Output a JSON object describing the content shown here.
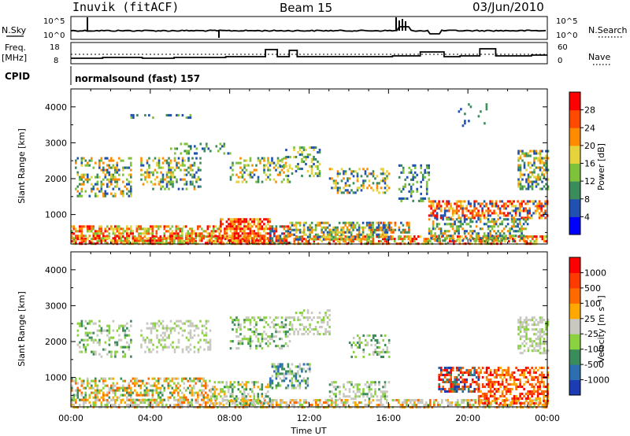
{
  "header": {
    "station": "Inuvik (fitACF)",
    "beam": "Beam 15",
    "date": "03/Jun/2010"
  },
  "noise_panel": {
    "left_label": "N.Sky",
    "right_label": "N.Search",
    "left_ticks": [
      "10^5",
      "10^0"
    ],
    "right_ticks": [
      "10^5",
      "10^0"
    ]
  },
  "freq_panel": {
    "left_label": "Freq.",
    "left_unit": "[MHz]",
    "right_label": "Nave",
    "left_ticks": [
      "18",
      "8"
    ],
    "right_ticks": [
      "60",
      "0"
    ]
  },
  "cpid": {
    "label": "CPID",
    "value": "normalsound (fast) 157"
  },
  "time_axis": {
    "label": "Time UT",
    "ticks": [
      "00:00",
      "04:00",
      "08:00",
      "12:00",
      "16:00",
      "20:00",
      "00:00"
    ]
  },
  "chart_data": [
    {
      "type": "heatmap",
      "title": "",
      "xlabel": "Time UT",
      "ylabel": "Slant Range [km]",
      "yticks": [
        1000,
        2000,
        3000,
        4000
      ],
      "ylim": [
        180,
        4500
      ],
      "xlim": [
        "00:00",
        "24:00"
      ],
      "colorbar": {
        "label": "Power [dB]",
        "ticks": [
          "4",
          "8",
          "12",
          "16",
          "20",
          "24",
          "28"
        ],
        "colors": [
          "#0000ff",
          "#2050b0",
          "#3a8c5a",
          "#7ec23c",
          "#e6d23a",
          "#ff8c00",
          "#ff4a00",
          "#ff0000"
        ]
      }
    },
    {
      "type": "heatmap",
      "title": "",
      "xlabel": "Time UT",
      "ylabel": "Slant Range [km]",
      "yticks": [
        1000,
        2000,
        3000,
        4000
      ],
      "ylim": [
        180,
        4500
      ],
      "xlim": [
        "00:00",
        "24:00"
      ],
      "colorbar": {
        "label": "Velocity [m s⁻¹]",
        "ticks": [
          "1000",
          "500",
          "100",
          "25",
          "-25",
          "-100",
          "-500",
          "-1000"
        ],
        "colors": [
          "#1c3cb4",
          "#2c6fb0",
          "#3a8c5a",
          "#8ad240",
          "#c8c8c0",
          "#ffa800",
          "#ff6a00",
          "#ff3a00",
          "#ff0000"
        ]
      }
    }
  ]
}
